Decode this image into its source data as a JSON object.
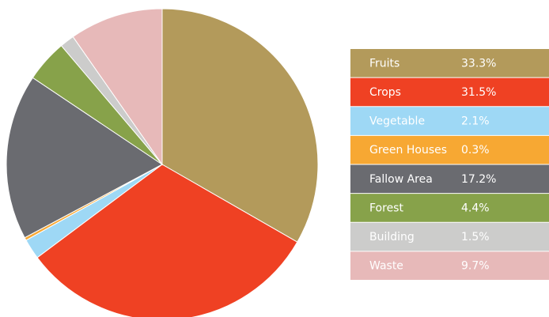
{
  "chart_data": {
    "type": "pie",
    "categories": [
      "Fruits",
      "Crops",
      "Vegetable",
      "Green Houses",
      "Fallow Area",
      "Forest",
      "Building",
      "Waste"
    ],
    "values": [
      33.3,
      31.5,
      2.1,
      0.3,
      17.2,
      4.4,
      1.5,
      9.7
    ],
    "value_labels": [
      "33.3%",
      "31.5%",
      "2.1%",
      "0.3%",
      "17.2%",
      "4.4%",
      "1.5%",
      "9.7%"
    ],
    "colors": [
      "#b39a5b",
      "#ef4123",
      "#9ed8f5",
      "#f7a833",
      "#6a6b70",
      "#87a24a",
      "#cccccb",
      "#e7b9b9"
    ]
  }
}
